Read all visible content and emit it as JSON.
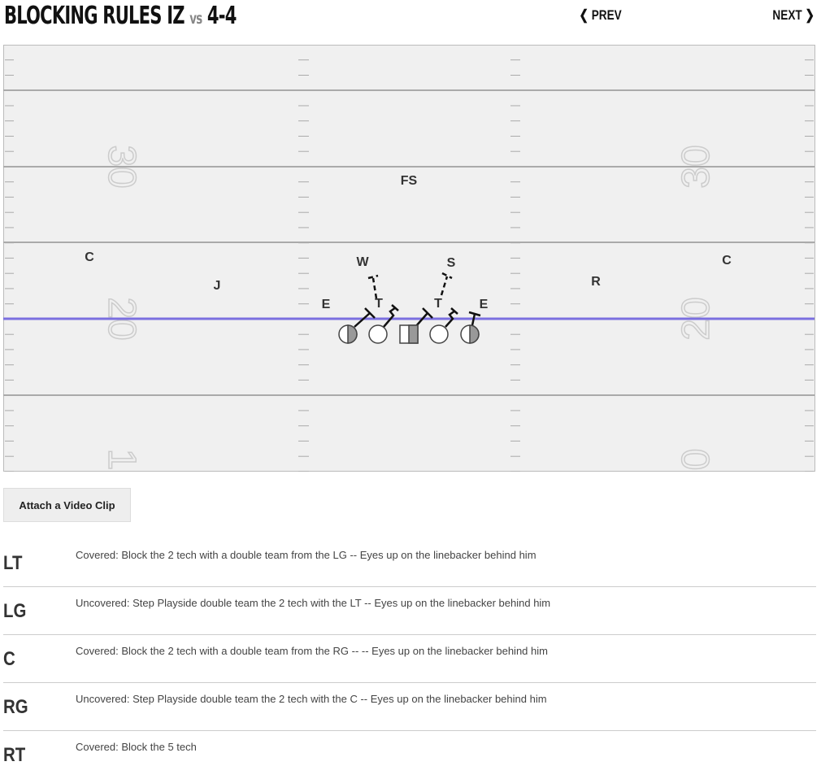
{
  "header": {
    "title": "BLOCKING RULES IZ",
    "vs": "vs",
    "opponent": "4-4",
    "prev": "PREV",
    "next": "NEXT"
  },
  "field": {
    "los_color": "#7b6fe0",
    "yard_numbers": [
      "30",
      "20",
      "1",
      "30",
      "20",
      "0"
    ],
    "defense": [
      {
        "label": "FS"
      },
      {
        "label": "C"
      },
      {
        "label": "J"
      },
      {
        "label": "W"
      },
      {
        "label": "S"
      },
      {
        "label": "C"
      },
      {
        "label": "R"
      },
      {
        "label": "E"
      },
      {
        "label": "T"
      },
      {
        "label": "T"
      },
      {
        "label": "E"
      }
    ],
    "offense": [
      "LT",
      "LG",
      "C",
      "RG",
      "RT"
    ]
  },
  "attach_label": "Attach a Video Clip",
  "rules": [
    {
      "pos": "LT",
      "text": "Covered: Block the 2 tech with a double team from the LG -- Eyes up on the linebacker behind him"
    },
    {
      "pos": "LG",
      "text": "Uncovered: Step Playside double team the 2 tech with the LT -- Eyes up on the linebacker behind him"
    },
    {
      "pos": "C",
      "text": "Covered: Block the 2 tech with a double team from the RG -- -- Eyes up on the linebacker behind him"
    },
    {
      "pos": "RG",
      "text": "Uncovered: Step Playside double team the 2 tech with the C -- Eyes up on the linebacker behind him"
    },
    {
      "pos": "RT",
      "text": "Covered: Block the 5 tech"
    }
  ]
}
